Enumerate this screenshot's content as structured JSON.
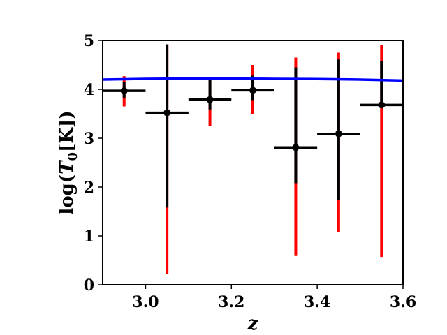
{
  "chart_data": {
    "type": "scatter",
    "title": "",
    "xlabel": "z",
    "ylabel_parts": {
      "pre": "log(",
      "var": "T",
      "sub": "0",
      "post": "[K])"
    },
    "xlim": [
      2.9,
      3.6
    ],
    "ylim": [
      0,
      5
    ],
    "xticks": [
      3.0,
      3.2,
      3.4,
      3.6
    ],
    "xtick_labels": [
      "3.0",
      "3.2",
      "3.4",
      "3.6"
    ],
    "yticks": [
      0,
      1,
      2,
      3,
      4,
      5
    ],
    "ytick_labels": [
      "0",
      "1",
      "2",
      "3",
      "4",
      "5"
    ],
    "grid": false,
    "colors": {
      "points": "#000000",
      "outer_error": "#ff0000",
      "inner_error": "#000000",
      "model_line": "#0000ff"
    },
    "points": [
      {
        "z": 2.95,
        "xerr": 0.05,
        "logT0": 3.97,
        "inner": [
          3.83,
          4.15
        ],
        "outer": [
          3.65,
          4.27
        ]
      },
      {
        "z": 3.05,
        "xerr": 0.05,
        "logT0": 3.52,
        "inner": [
          1.58,
          4.92
        ],
        "outer": [
          0.22,
          4.92
        ]
      },
      {
        "z": 3.15,
        "xerr": 0.05,
        "logT0": 3.79,
        "inner": [
          3.59,
          4.22
        ],
        "outer": [
          3.25,
          4.25
        ]
      },
      {
        "z": 3.25,
        "xerr": 0.05,
        "logT0": 3.98,
        "inner": [
          3.78,
          4.28
        ],
        "outer": [
          3.5,
          4.5
        ]
      },
      {
        "z": 3.35,
        "xerr": 0.05,
        "logT0": 2.81,
        "inner": [
          2.08,
          4.45
        ],
        "outer": [
          0.59,
          4.65
        ]
      },
      {
        "z": 3.45,
        "xerr": 0.05,
        "logT0": 3.09,
        "inner": [
          1.73,
          4.61
        ],
        "outer": [
          1.08,
          4.75
        ]
      },
      {
        "z": 3.55,
        "xerr": 0.05,
        "logT0": 3.68,
        "inner": [
          3.68,
          4.58
        ],
        "outer": [
          0.57,
          4.9
        ]
      }
    ],
    "model_line": {
      "x": [
        2.9,
        3.0,
        3.1,
        3.2,
        3.3,
        3.4,
        3.5,
        3.6
      ],
      "y": [
        4.2,
        4.215,
        4.22,
        4.22,
        4.215,
        4.21,
        4.2,
        4.18
      ]
    }
  }
}
